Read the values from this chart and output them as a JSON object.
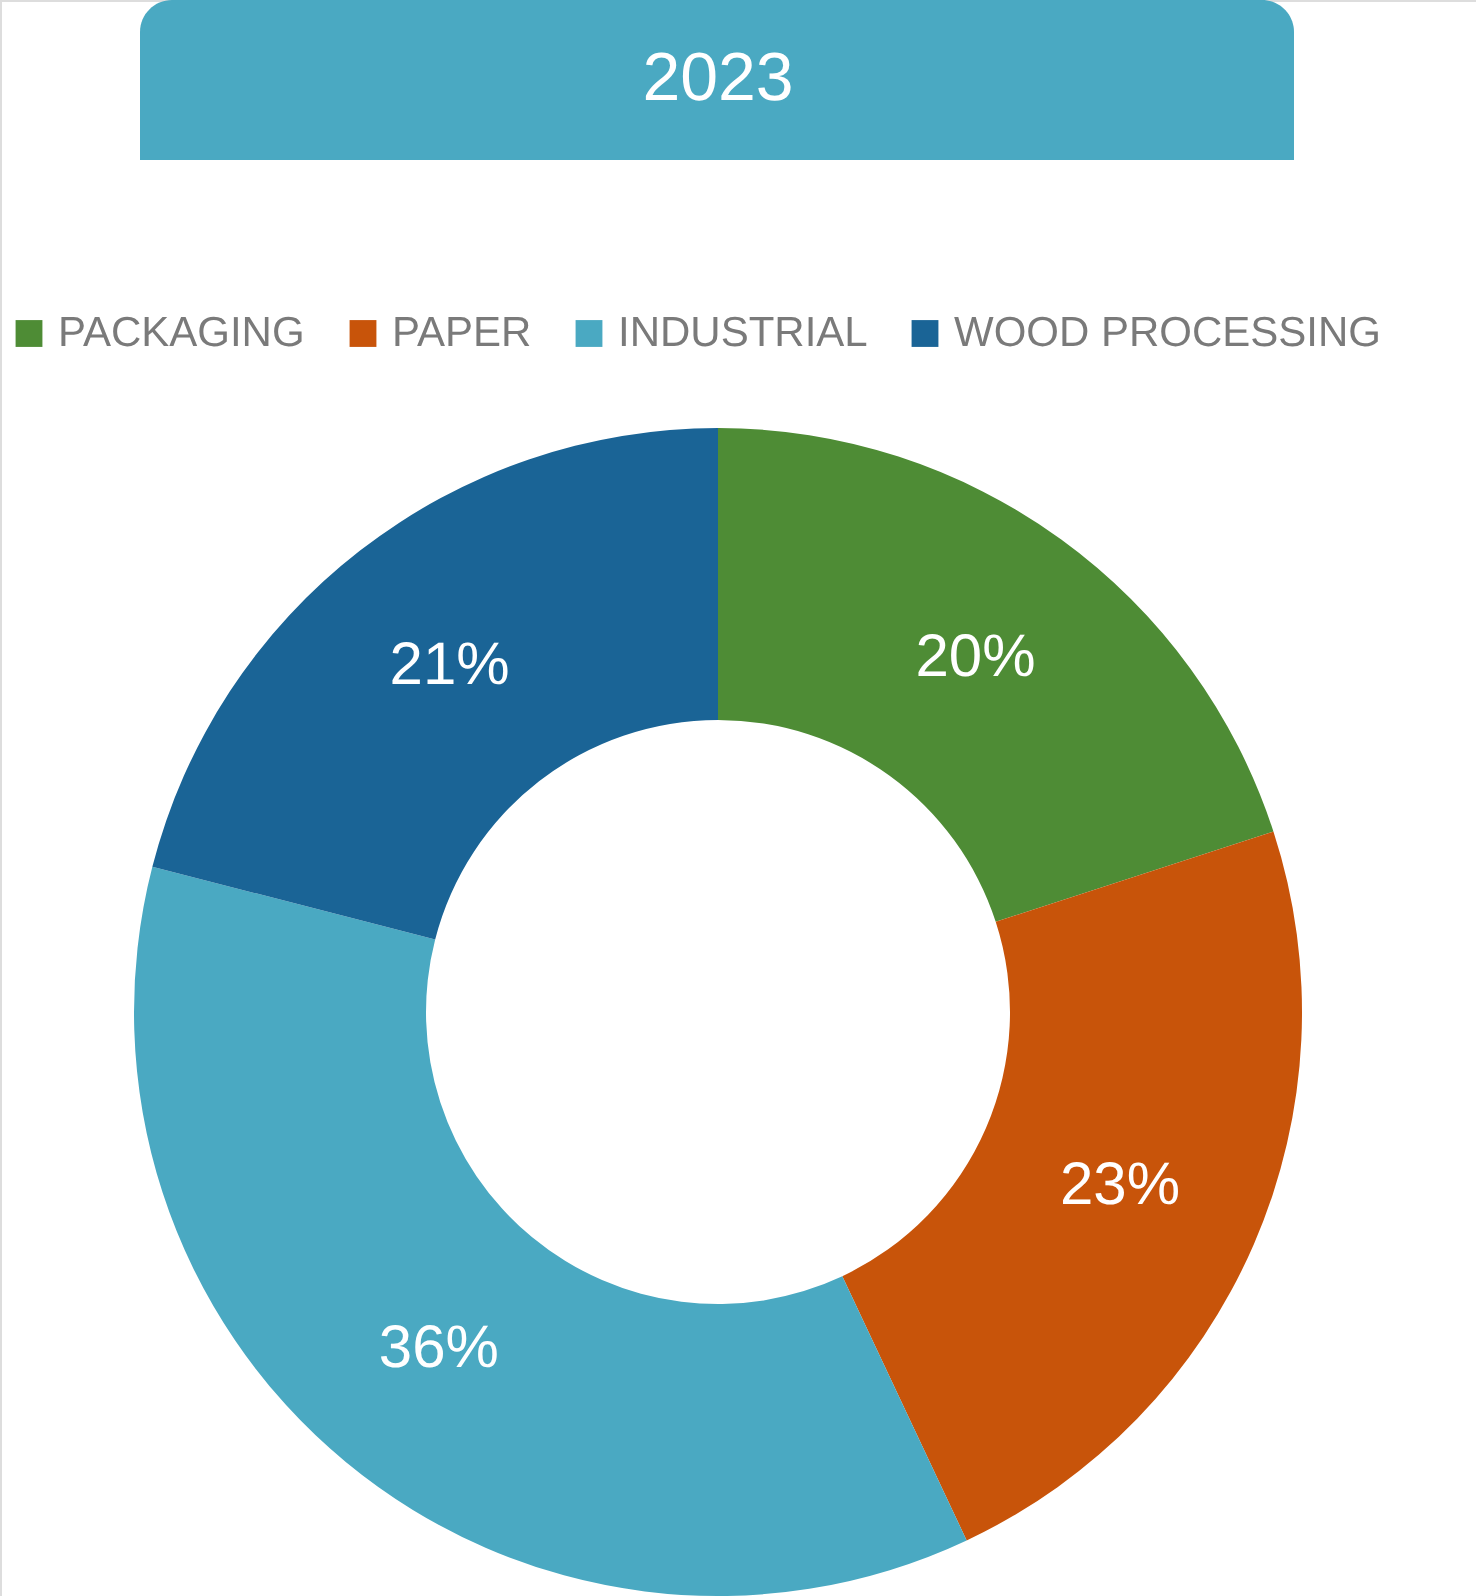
{
  "chart_data": {
    "type": "donut",
    "title": "2023",
    "categories": [
      "PACKAGING",
      "PAPER",
      "INDUSTRIAL",
      "WOOD PROCESSING"
    ],
    "values": [
      20,
      23,
      36,
      21
    ],
    "colors": [
      "#4e8c35",
      "#c8540a",
      "#4aa9c2",
      "#1a6496"
    ],
    "value_labels": [
      "20%",
      "23%",
      "36%",
      "21%"
    ],
    "legend": "top"
  }
}
